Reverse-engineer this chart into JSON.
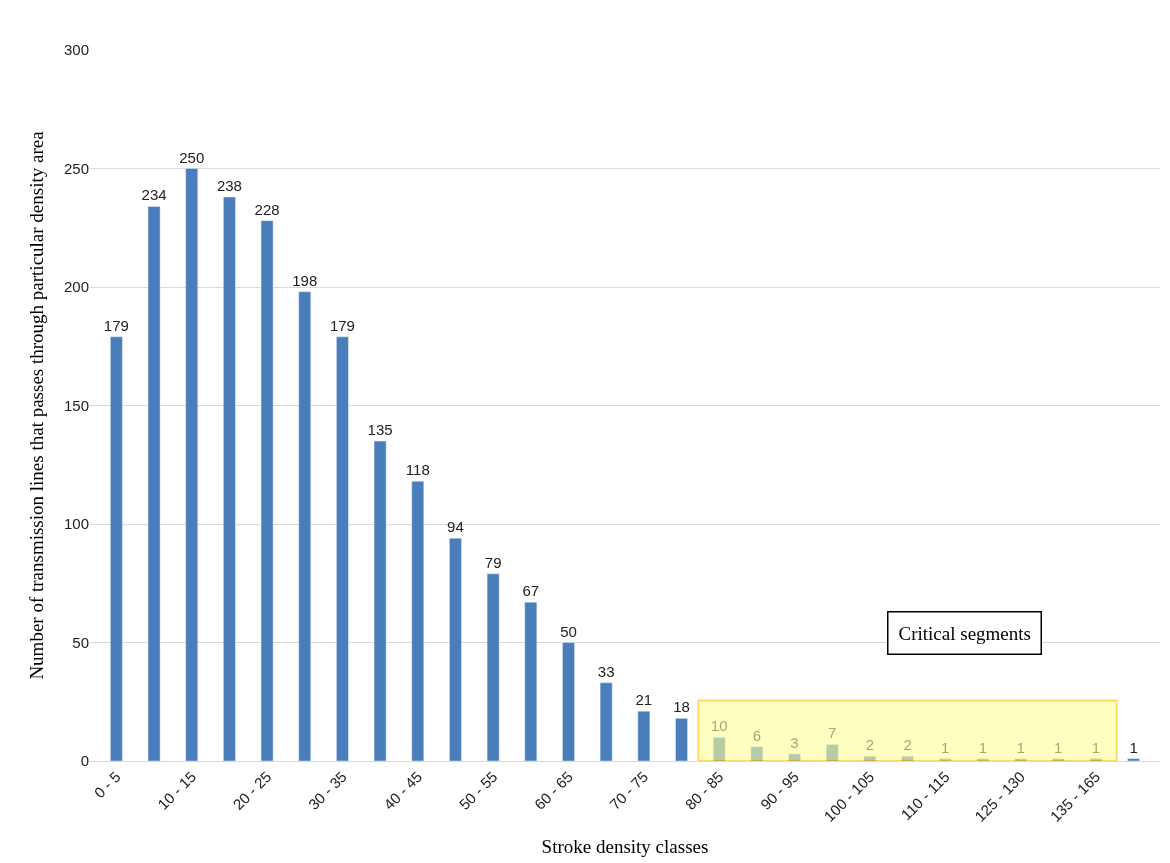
{
  "chart_data": {
    "type": "bar",
    "xlabel": "Stroke density classes",
    "ylabel": "Number of transmission lines that passes through particular density area",
    "categories": [
      "0 - 5",
      null,
      "10 - 15",
      null,
      "20 - 25",
      null,
      "30 - 35",
      null,
      "40 - 45",
      null,
      "50 - 55",
      null,
      "60 - 65",
      null,
      "70 - 75",
      null,
      "80 - 85",
      null,
      "90 - 95",
      null,
      "100 - 105",
      null,
      "110 - 115",
      null,
      "125 - 130",
      null,
      "135 - 165",
      null
    ],
    "values": [
      179,
      234,
      250,
      238,
      228,
      198,
      179,
      135,
      118,
      94,
      79,
      67,
      50,
      33,
      21,
      18,
      10,
      6,
      3,
      7,
      2,
      2,
      1,
      1,
      1,
      1,
      1,
      1
    ],
    "color": "#4a7ebb",
    "data_labels": true,
    "ylim": [
      0,
      300
    ],
    "yticks": [
      0,
      50,
      100,
      150,
      200,
      250,
      300
    ],
    "grid": "y",
    "annotations": [
      "Critical segments"
    ],
    "bands": [
      {
        "axis": "x",
        "from": "80 - 85",
        "to": "135 - 165",
        "color": "#ffff99"
      }
    ]
  }
}
